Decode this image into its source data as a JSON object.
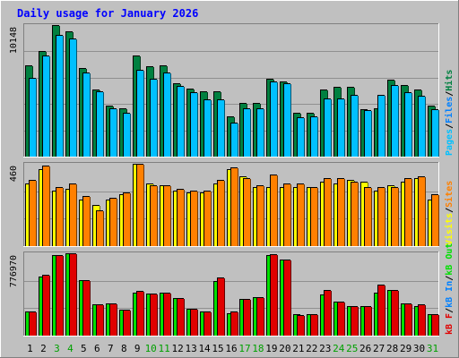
{
  "chart_data": {
    "type": "bar",
    "title": "Daily usage for January 2026",
    "categories": [
      "1",
      "2",
      "3",
      "4",
      "5",
      "6",
      "7",
      "8",
      "9",
      "10",
      "11",
      "12",
      "13",
      "14",
      "15",
      "16",
      "17",
      "18",
      "19",
      "20",
      "21",
      "22",
      "23",
      "24",
      "25",
      "26",
      "27",
      "28",
      "29",
      "30",
      "31"
    ],
    "weekend_days": [
      "3",
      "4",
      "10",
      "11",
      "17",
      "18",
      "24",
      "25",
      "31"
    ],
    "colors": {
      "hits": "#008040",
      "files": "#0080ff",
      "pages": "#00c0ff",
      "visits": "#ffff00",
      "sites": "#ff8000",
      "kbin": "#00e000",
      "kbout": "#e00000",
      "background": "#c0c0c0",
      "title": "#0000ff",
      "weekend": "#00a000"
    },
    "panels": [
      {
        "id": "hits-files-pages",
        "max_label": "10148",
        "legend": [
          {
            "text": "Pages",
            "color": "#00c0ff"
          },
          {
            "text": "/",
            "color": "#000000"
          },
          {
            "text": "Files",
            "color": "#0080ff"
          },
          {
            "text": "/",
            "color": "#000000"
          },
          {
            "text": "Hits",
            "color": "#008040"
          }
        ],
        "series": [
          {
            "name": "Hits",
            "color": "#008040",
            "values": [
              7500,
              8700,
              10800,
              10300,
              7300,
              5500,
              4200,
              4000,
              8300,
              7400,
              7500,
              6000,
              5600,
              5400,
              5400,
              3300,
              4400,
              4400,
              6400,
              6200,
              3600,
              3600,
              5500,
              5700,
              5700,
              3900,
              4000,
              6300,
              5900,
              5500,
              4200
            ]
          },
          {
            "name": "Pages",
            "color": "#00c0ff",
            "values": [
              6500,
              8300,
              10000,
              9700,
              6900,
              5400,
              4000,
              3600,
              7100,
              6400,
              6900,
              5800,
              5300,
              4700,
              4700,
              2800,
              4000,
              4000,
              6200,
              6000,
              3200,
              3300,
              4800,
              4800,
              5100,
              3800,
              5100,
              5900,
              5300,
              5000,
              3900
            ]
          }
        ]
      },
      {
        "id": "visits-sites",
        "max_label": "460",
        "legend": [
          {
            "text": "Visits",
            "color": "#ffff00"
          },
          {
            "text": "/",
            "color": "#000000"
          },
          {
            "text": "Sites",
            "color": "#ff8000"
          }
        ],
        "series": [
          {
            "name": "Visits",
            "color": "#ffff00",
            "values": [
              350,
              430,
              310,
              320,
              260,
              230,
              260,
              290,
              460,
              350,
              340,
              310,
              300,
              300,
              350,
              430,
              390,
              330,
              330,
              330,
              330,
              330,
              360,
              350,
              370,
              360,
              310,
              340,
              360,
              380,
              260
            ]
          },
          {
            "name": "Sites",
            "color": "#ff8000",
            "values": [
              370,
              450,
              330,
              350,
              280,
              200,
              270,
              300,
              460,
              340,
              340,
              320,
              310,
              310,
              370,
              440,
              380,
              340,
              400,
              350,
              350,
              330,
              380,
              380,
              360,
              330,
              330,
              330,
              380,
              390,
              290
            ]
          }
        ]
      },
      {
        "id": "kbin-kbout",
        "max_label": "776970",
        "legend": [
          {
            "text": "kB F",
            "color": "#e00000"
          },
          {
            "text": "/",
            "color": "#000000"
          },
          {
            "text": "kB In",
            "color": "#0080ff"
          },
          {
            "text": "/",
            "color": "#000000"
          },
          {
            "text": "kB Out",
            "color": "#00e000"
          }
        ],
        "series": [
          {
            "name": "kB Out",
            "color": "#00e000",
            "values": [
              225000,
              545000,
              745000,
              760000,
              510000,
              290000,
              300000,
              240000,
              400000,
              390000,
              400000,
              350000,
              245000,
              225000,
              505000,
              210000,
              340000,
              355000,
              740000,
              700000,
              195000,
              195000,
              380000,
              310000,
              275000,
              275000,
              400000,
              420000,
              300000,
              275000,
              200000
            ]
          },
          {
            "name": "kB F",
            "color": "#e00000",
            "values": [
              225000,
              560000,
              745000,
              760000,
              510000,
              290000,
              300000,
              240000,
              410000,
              390000,
              400000,
              350000,
              245000,
              225000,
              540000,
              225000,
              340000,
              355000,
              750000,
              700000,
              190000,
              195000,
              420000,
              310000,
              275000,
              275000,
              470000,
              420000,
              300000,
              290000,
              200000
            ]
          }
        ]
      }
    ]
  }
}
